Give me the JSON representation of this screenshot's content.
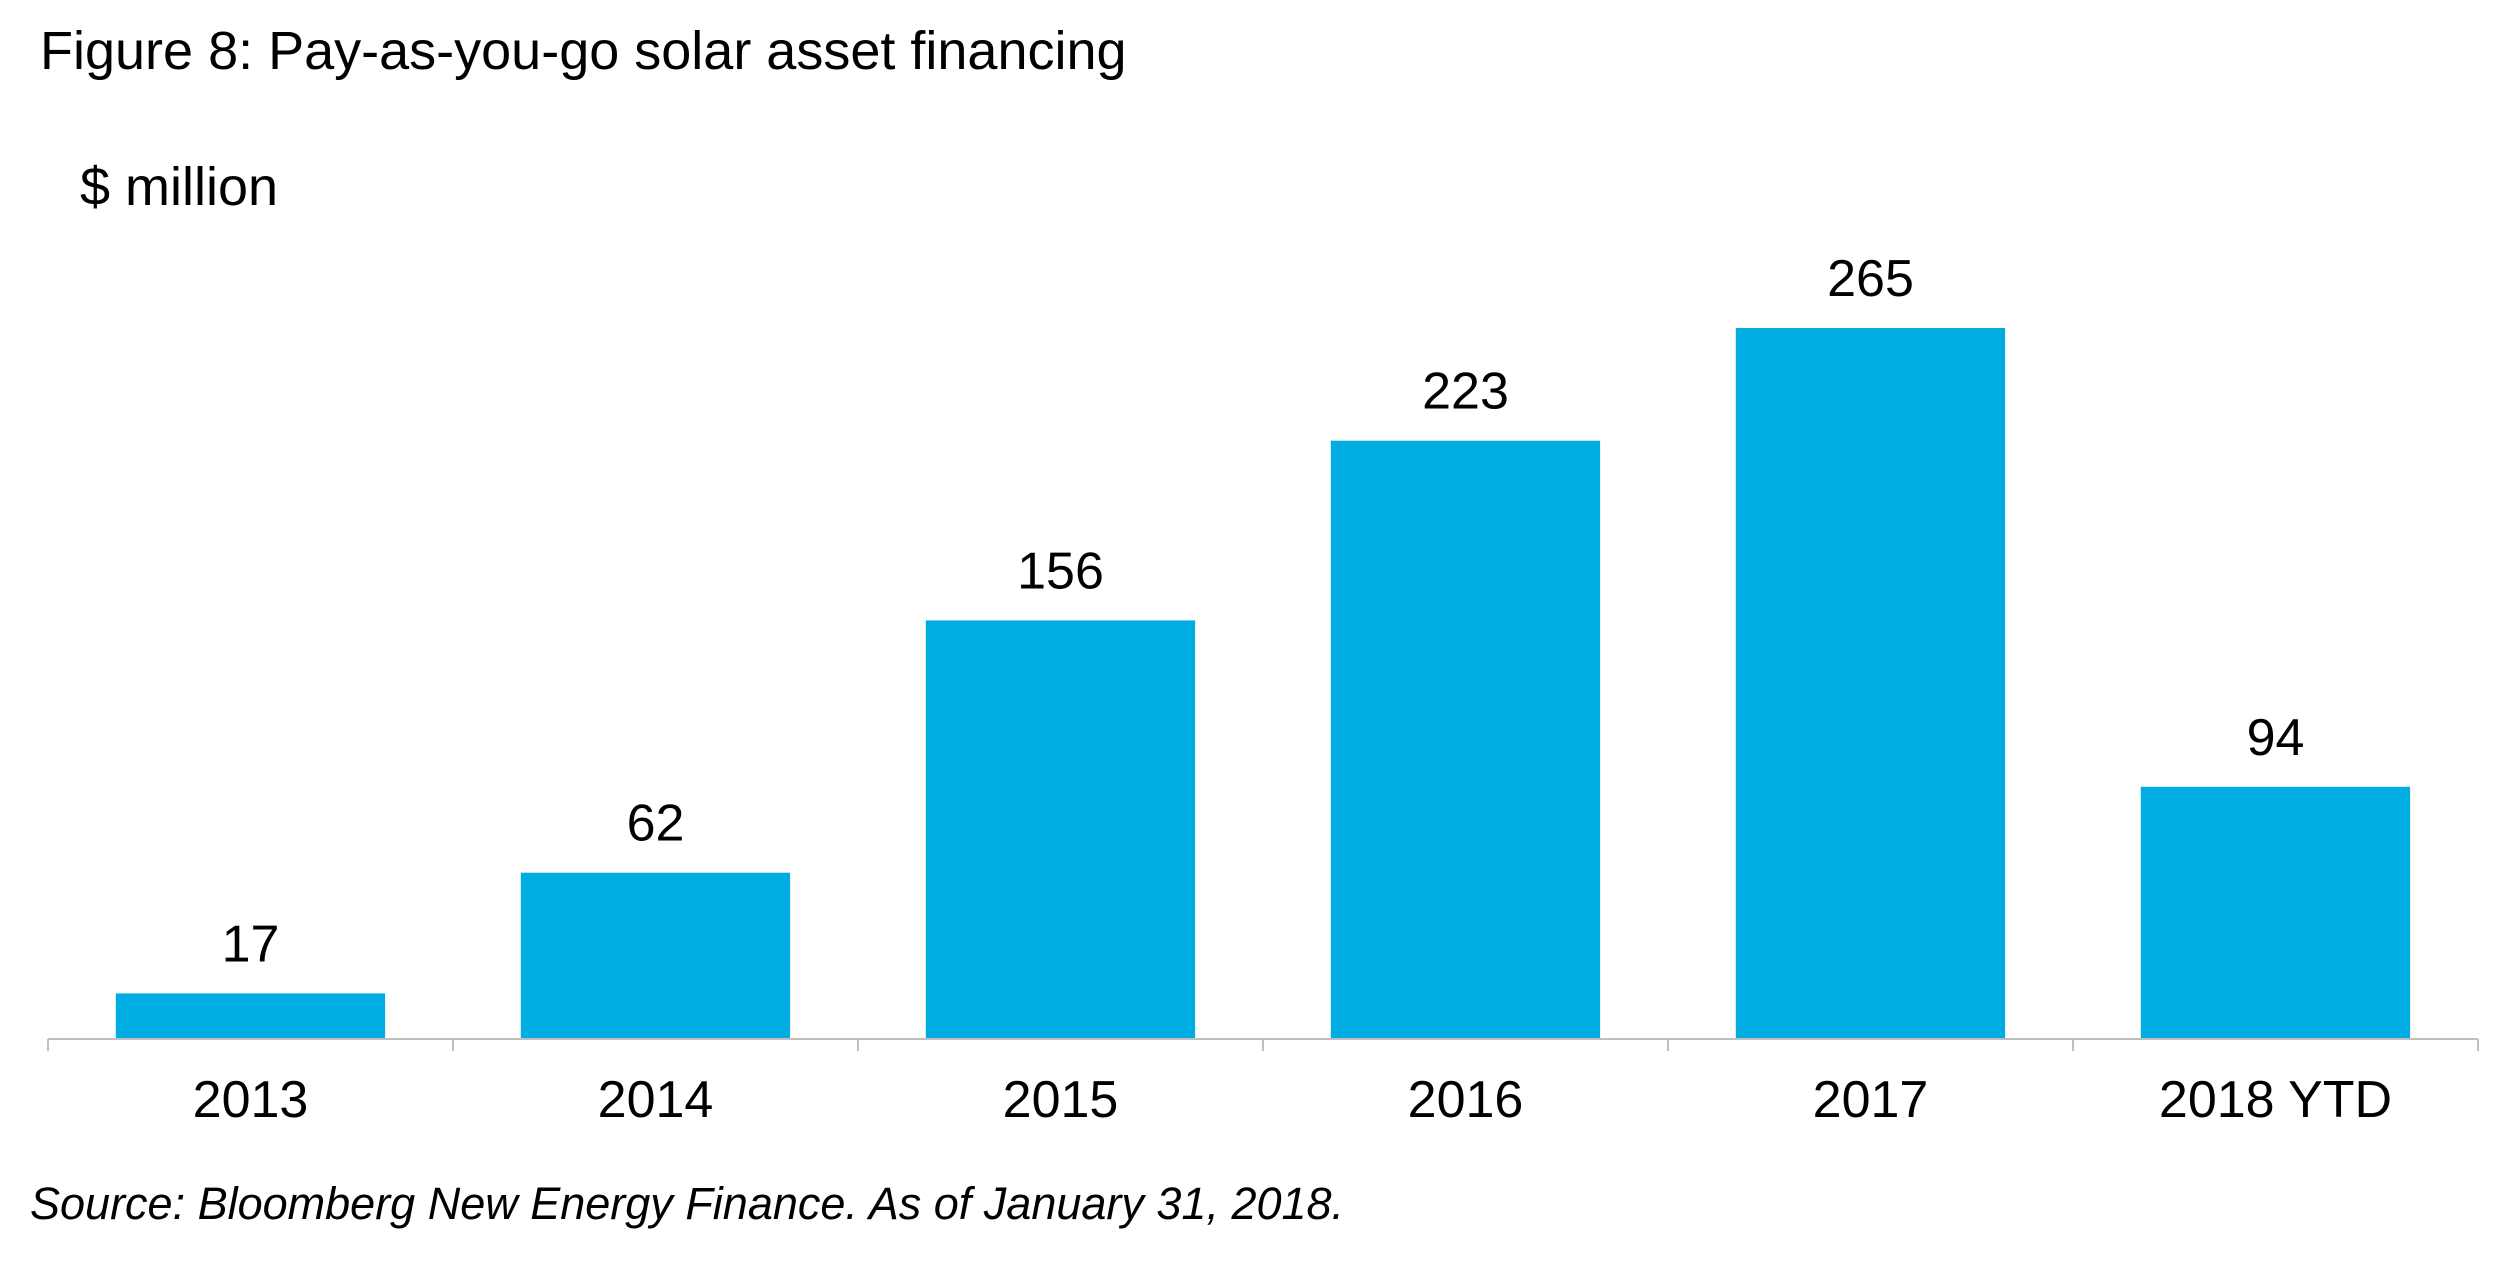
{
  "figure": {
    "title": "Figure 8: Pay-as-you-go solar asset financing",
    "unit": "$ million",
    "source": "Source: Bloomberg New Energy Finance. As of January 31, 2018."
  },
  "colors": {
    "bar": "#00ADE3",
    "axis": "#BFBFBF",
    "text": "#000000",
    "background": "#FFFFFF"
  },
  "chart_data": {
    "type": "bar",
    "title": "Figure 8: Pay-as-you-go solar asset financing",
    "ylabel": "$ million",
    "xlabel": "",
    "categories": [
      "2013",
      "2014",
      "2015",
      "2016",
      "2017",
      "2018 YTD"
    ],
    "values": [
      17,
      62,
      156,
      223,
      265,
      94
    ],
    "data_labels": [
      "17",
      "62",
      "156",
      "223",
      "265",
      "94"
    ],
    "ylim": [
      0,
      265
    ],
    "grid": false,
    "legend": "none",
    "y_axis_visible": false
  }
}
